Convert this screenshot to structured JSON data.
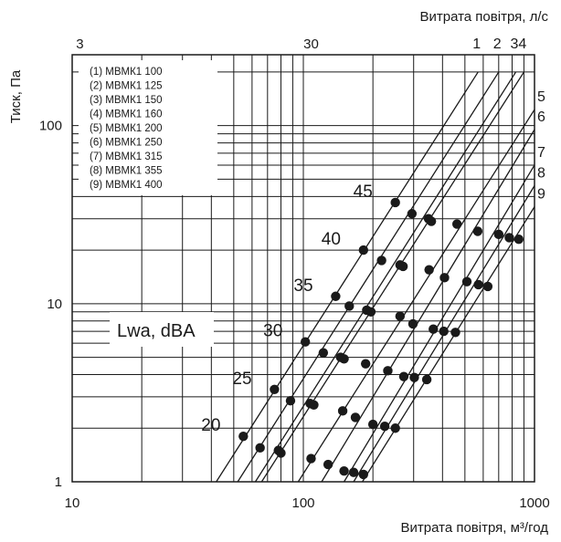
{
  "chart_data": {
    "type": "scatter",
    "title": "",
    "xlabel": "Витрата повітря, м³/год",
    "x2label": "Витрата повітря, л/с",
    "ylabel": "Тиск, Па",
    "x_scale": "log",
    "y_scale": "log",
    "xlim": [
      10,
      1000
    ],
    "ylim": [
      1,
      250
    ],
    "grid": true,
    "x_ticks": [
      "10",
      "100",
      "1000"
    ],
    "x2_ticks": [
      "3",
      "30"
    ],
    "y_ticks": [
      "1",
      "10",
      "100"
    ],
    "iso_label_title": "Lwa, dBA",
    "legend": [
      "(1) МВМК1 100",
      "(2) МВМК1 125",
      "(3) МВМК1 150",
      "(4) МВМК1 160",
      "(5) МВМК1 200",
      "(6) МВМК1 250",
      "(7) МВМК1 315",
      "(8) МВМК1 355",
      "(9) МВМК1 400"
    ],
    "iso_levels": [
      "20",
      "25",
      "30",
      "35",
      "40",
      "45"
    ],
    "series": [
      {
        "name": "1",
        "line": [
          [
            42,
            1
          ],
          [
            570,
            200
          ]
        ],
        "points": [
          [
            55,
            1.8
          ],
          [
            75,
            3.3
          ],
          [
            102,
            6.1
          ],
          [
            138,
            11
          ],
          [
            182,
            20
          ],
          [
            250,
            37
          ]
        ]
      },
      {
        "name": "2",
        "line": [
          [
            52,
            1
          ],
          [
            700,
            200
          ]
        ],
        "points": [
          [
            65,
            1.55
          ],
          [
            88,
            2.85
          ],
          [
            122,
            5.3
          ],
          [
            158,
            9.7
          ],
          [
            218,
            17.5
          ],
          [
            295,
            32
          ]
        ]
      },
      {
        "name": "3",
        "line": [
          [
            62,
            1
          ],
          [
            830,
            200
          ]
        ],
        "points": [
          [
            78,
            1.5
          ],
          [
            107,
            2.75
          ],
          [
            145,
            5.0
          ],
          [
            188,
            9.2
          ],
          [
            262,
            16.5
          ],
          [
            348,
            30
          ]
        ]
      },
      {
        "name": "4",
        "line": [
          [
            66,
            1
          ],
          [
            900,
            200
          ]
        ],
        "points": [
          [
            80,
            1.45
          ],
          [
            111,
            2.7
          ],
          [
            150,
            4.9
          ],
          [
            196,
            9.0
          ],
          [
            270,
            16.2
          ],
          [
            358,
            29
          ]
        ]
      },
      {
        "name": "5",
        "line": [
          [
            95,
            1
          ],
          [
            1000,
            123
          ]
        ],
        "points": [
          [
            108,
            1.35
          ],
          [
            148,
            2.5
          ],
          [
            186,
            4.6
          ],
          [
            262,
            8.5
          ],
          [
            350,
            15.5
          ],
          [
            462,
            28
          ]
        ]
      },
      {
        "name": "6",
        "line": [
          [
            120,
            1
          ],
          [
            1000,
            95
          ]
        ],
        "points": [
          [
            128,
            1.25
          ],
          [
            168,
            2.3
          ],
          [
            232,
            4.2
          ],
          [
            298,
            7.7
          ],
          [
            408,
            14
          ],
          [
            568,
            25.5
          ]
        ]
      },
      {
        "name": "7",
        "line": [
          [
            150,
            1
          ],
          [
            1000,
            60
          ]
        ],
        "points": [
          [
            150,
            1.15
          ],
          [
            200,
            2.1
          ],
          [
            272,
            3.9
          ],
          [
            365,
            7.2
          ],
          [
            510,
            13.3
          ],
          [
            700,
            24.5
          ]
        ]
      },
      {
        "name": "8",
        "line": [
          [
            165,
            1
          ],
          [
            1000,
            46
          ]
        ],
        "points": [
          [
            165,
            1.13
          ],
          [
            225,
            2.05
          ],
          [
            302,
            3.85
          ],
          [
            405,
            7.0
          ],
          [
            572,
            12.8
          ],
          [
            778,
            23.5
          ]
        ]
      },
      {
        "name": "9",
        "line": [
          [
            180,
            1
          ],
          [
            1000,
            35
          ]
        ],
        "points": [
          [
            182,
            1.1
          ],
          [
            250,
            2.0
          ],
          [
            342,
            3.75
          ],
          [
            455,
            6.9
          ],
          [
            628,
            12.5
          ],
          [
            855,
            23
          ]
        ]
      }
    ]
  }
}
